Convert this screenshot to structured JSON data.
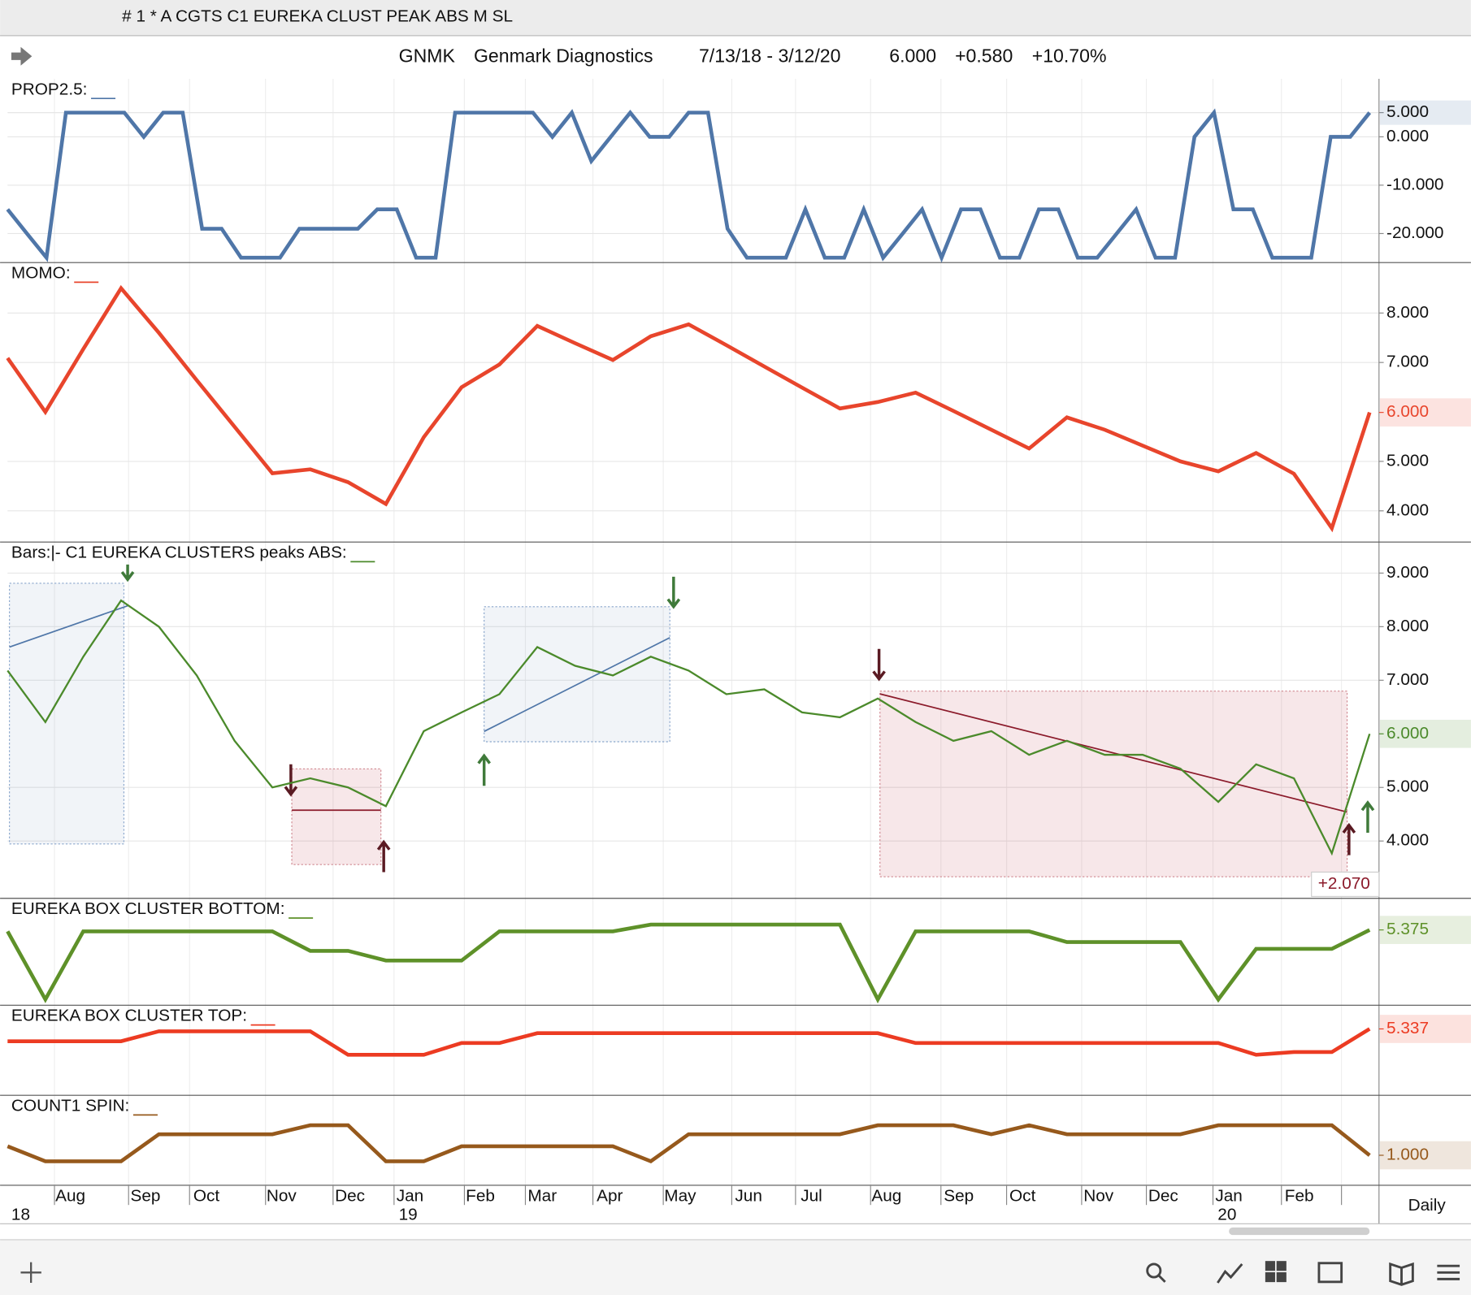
{
  "window_title": "# 1 * A CGTS  C1 EUREKA CLUST PEAK ABS M  SL",
  "header": {
    "symbol": "GNMK",
    "name": "Genmark Diagnostics",
    "range": "7/13/18 - 3/12/20",
    "last": "6.000",
    "change": "+0.580",
    "change_pct": "+10.70%"
  },
  "chart_data": [
    {
      "type": "line",
      "title": "PROP2.5:",
      "color": "#4f76a8",
      "values": [
        -15,
        -20,
        -25,
        5,
        5,
        5,
        5,
        0,
        5,
        5,
        -19,
        -19,
        -25,
        -25,
        -25,
        -19,
        -19,
        -19,
        -19,
        -15,
        -15,
        -25,
        -25,
        5,
        5,
        5,
        5,
        5,
        0,
        5,
        -5,
        0,
        5,
        0,
        0,
        5,
        5,
        -19,
        -25,
        -25,
        -25,
        -15,
        -25,
        -25,
        -15,
        -25,
        -20,
        -15,
        -25,
        -15,
        -15,
        -25,
        -25,
        -15,
        -15,
        -25,
        -25,
        -20,
        -15,
        -25,
        -25,
        0,
        5,
        -15,
        -15,
        -25,
        -25,
        -25,
        0,
        0,
        5
      ],
      "ylim": [
        -26,
        12
      ],
      "yticks": [
        {
          "value": 5,
          "label": "5.000"
        },
        {
          "value": 0,
          "label": "0.000"
        },
        {
          "value": -10,
          "label": "-10.000"
        },
        {
          "value": -20,
          "label": "-20.000"
        }
      ]
    },
    {
      "type": "line",
      "title": "MOMO:",
      "color": "#e8452c",
      "last_label": "6.000",
      "values": [
        7.09,
        6.0,
        7.27,
        8.5,
        7.6,
        6.64,
        5.7,
        4.76,
        4.84,
        4.58,
        4.14,
        5.49,
        6.5,
        6.96,
        7.74,
        7.39,
        7.05,
        7.53,
        7.77,
        7.35,
        6.92,
        6.49,
        6.07,
        6.2,
        6.39,
        6.02,
        5.64,
        5.26,
        5.89,
        5.64,
        5.32,
        5.0,
        4.8,
        5.17,
        4.75,
        3.65,
        5.99
      ],
      "ylim": [
        3.37,
        9.02
      ],
      "yticks": [
        {
          "value": 8,
          "label": "8.000"
        },
        {
          "value": 7,
          "label": "7.000"
        },
        {
          "value": 5,
          "label": "5.000"
        },
        {
          "value": 4,
          "label": "4.000"
        }
      ]
    },
    {
      "type": "line",
      "title": "Bars:|-   C1 EUREKA CLUSTERS peaks ABS:",
      "color": "#4b8a2b",
      "last_label": "6.000",
      "annotation": "+2.070",
      "values": [
        7.18,
        6.22,
        7.44,
        8.49,
        8.0,
        7.09,
        5.87,
        5.0,
        5.17,
        5.0,
        4.65,
        6.05,
        6.4,
        6.74,
        7.62,
        7.27,
        7.09,
        7.44,
        7.18,
        6.74,
        6.83,
        6.4,
        6.31,
        6.66,
        6.22,
        5.87,
        6.05,
        5.61,
        5.87,
        5.61,
        5.61,
        5.35,
        4.73,
        5.43,
        5.17,
        3.77,
        6.0
      ],
      "ylim": [
        2.93,
        9.58
      ],
      "yticks": [
        {
          "value": 9,
          "label": "9.000"
        },
        {
          "value": 8,
          "label": "8.000"
        },
        {
          "value": 7,
          "label": "7.000"
        },
        {
          "value": 5,
          "label": "5.000"
        },
        {
          "value": 4,
          "label": "4.000"
        }
      ]
    },
    {
      "type": "line",
      "title": "EUREKA BOX CLUSTER BOTTOM:",
      "color": "#5e9129",
      "last_label": "5.375",
      "values": [
        5.36,
        4.66,
        5.36,
        5.36,
        5.36,
        5.36,
        5.36,
        5.36,
        5.16,
        5.16,
        5.06,
        5.06,
        5.06,
        5.36,
        5.36,
        5.36,
        5.36,
        5.43,
        5.43,
        5.43,
        5.43,
        5.43,
        5.43,
        4.66,
        5.36,
        5.36,
        5.36,
        5.36,
        5.25,
        5.25,
        5.25,
        5.25,
        4.66,
        5.18,
        5.18,
        5.18,
        5.375
      ],
      "ylim": [
        4.6,
        5.7
      ]
    },
    {
      "type": "line",
      "title": "EUREKA BOX CLUSTER TOP:",
      "color": "#ec3b22",
      "last_label": "5.337",
      "values": [
        5.2,
        5.2,
        5.2,
        5.2,
        5.31,
        5.31,
        5.31,
        5.31,
        5.31,
        5.05,
        5.05,
        5.05,
        5.18,
        5.18,
        5.29,
        5.29,
        5.29,
        5.29,
        5.29,
        5.29,
        5.29,
        5.29,
        5.29,
        5.29,
        5.18,
        5.18,
        5.18,
        5.18,
        5.18,
        5.18,
        5.18,
        5.18,
        5.18,
        5.05,
        5.08,
        5.08,
        5.337
      ],
      "ylim": [
        4.6,
        5.6
      ]
    },
    {
      "type": "line",
      "title": "COUNT1 SPIN:",
      "color": "#96591c",
      "last_label": "1.000",
      "values": [
        1.3,
        0.8,
        0.8,
        0.8,
        1.7,
        1.7,
        1.7,
        1.7,
        2,
        2,
        0.8,
        0.8,
        1.3,
        1.3,
        1.3,
        1.3,
        1.3,
        0.8,
        1.7,
        1.7,
        1.7,
        1.7,
        1.7,
        2,
        2,
        2,
        1.7,
        2,
        1.7,
        1.7,
        1.7,
        1.7,
        2,
        2,
        2,
        2,
        1.0
      ],
      "ylim": [
        0,
        3
      ]
    }
  ],
  "x_axis": {
    "months": [
      "Aug",
      "Sep",
      "Oct",
      "Nov",
      "Dec",
      "Jan",
      "Feb",
      "Mar",
      "Apr",
      "May",
      "Jun",
      "Jul",
      "Aug",
      "Sep",
      "Oct",
      "Nov",
      "Dec",
      "Jan",
      "Feb"
    ],
    "years": [
      "18",
      "19",
      "20"
    ],
    "period": "Daily"
  }
}
